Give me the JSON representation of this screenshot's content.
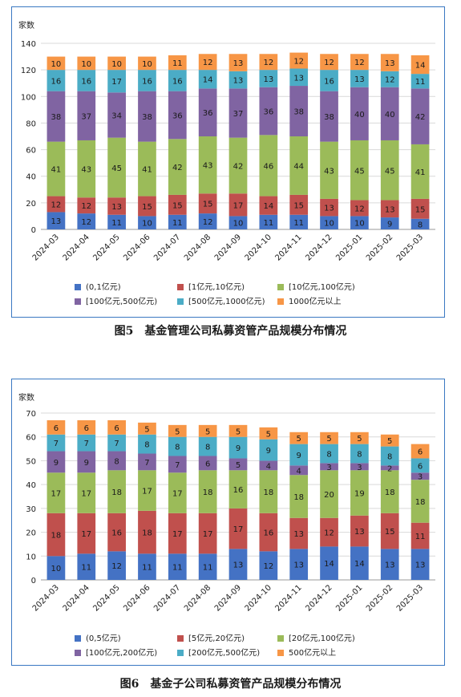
{
  "figures": [
    {
      "caption": "图5　基金管理公司私募资管产品规模分布情况"
    },
    {
      "caption": "图6　基金子公司私募资管产品规模分布情况"
    }
  ],
  "chart_data": [
    {
      "type": "bar",
      "stacked": true,
      "title": "",
      "ylabel": "家数",
      "xlabel": "",
      "ylim": [
        0,
        140
      ],
      "yticks": [
        0,
        20,
        40,
        60,
        80,
        100,
        120,
        140
      ],
      "grid": true,
      "legend_position": "bottom",
      "categories": [
        "2024-03",
        "2024-04",
        "2024-05",
        "2024-06",
        "2024-07",
        "2024-08",
        "2024-09",
        "2024-10",
        "2024-11",
        "2024-12",
        "2025-01",
        "2025-02",
        "2025-03"
      ],
      "series": [
        {
          "name": "(0,1亿元)",
          "color": "#4472c4",
          "values": [
            13,
            12,
            11,
            10,
            11,
            12,
            10,
            11,
            11,
            10,
            10,
            9,
            8
          ]
        },
        {
          "name": "[1亿元,10亿元)",
          "color": "#c0504d",
          "values": [
            12,
            12,
            13,
            15,
            15,
            15,
            17,
            14,
            15,
            13,
            12,
            13,
            15
          ]
        },
        {
          "name": "[10亿元,100亿元)",
          "color": "#9bbb59",
          "values": [
            41,
            43,
            45,
            41,
            42,
            43,
            42,
            46,
            44,
            43,
            45,
            45,
            41
          ]
        },
        {
          "name": "[100亿元,500亿元)",
          "color": "#8064a2",
          "values": [
            38,
            37,
            34,
            38,
            36,
            36,
            37,
            36,
            38,
            38,
            40,
            40,
            42
          ]
        },
        {
          "name": "[500亿元,1000亿元)",
          "color": "#4bacc6",
          "values": [
            16,
            16,
            17,
            16,
            16,
            14,
            13,
            13,
            13,
            16,
            13,
            12,
            11
          ]
        },
        {
          "name": "1000亿元以上",
          "color": "#f79646",
          "values": [
            10,
            10,
            10,
            10,
            11,
            12,
            13,
            12,
            12,
            12,
            12,
            13,
            14
          ]
        }
      ]
    },
    {
      "type": "bar",
      "stacked": true,
      "title": "",
      "ylabel": "家数",
      "xlabel": "",
      "ylim": [
        0,
        70
      ],
      "yticks": [
        0,
        10,
        20,
        30,
        40,
        50,
        60,
        70
      ],
      "grid": true,
      "legend_position": "bottom",
      "categories": [
        "2024-03",
        "2024-04",
        "2024-05",
        "2024-06",
        "2024-07",
        "2024-08",
        "2024-09",
        "2024-10",
        "2024-11",
        "2024-12",
        "2025-01",
        "2025-02",
        "2025-03"
      ],
      "series": [
        {
          "name": "(0,5亿元)",
          "color": "#4472c4",
          "values": [
            10,
            11,
            12,
            11,
            11,
            11,
            13,
            12,
            13,
            14,
            14,
            13,
            13
          ]
        },
        {
          "name": "[5亿元,20亿元)",
          "color": "#c0504d",
          "values": [
            18,
            17,
            16,
            18,
            17,
            17,
            17,
            16,
            13,
            12,
            13,
            15,
            11
          ]
        },
        {
          "name": "[20亿元,100亿元)",
          "color": "#9bbb59",
          "values": [
            17,
            17,
            18,
            17,
            17,
            18,
            16,
            18,
            18,
            20,
            19,
            18,
            18
          ]
        },
        {
          "name": "[100亿元,200亿元)",
          "color": "#8064a2",
          "values": [
            9,
            9,
            8,
            7,
            7,
            6,
            5,
            4,
            4,
            3,
            3,
            2,
            3
          ]
        },
        {
          "name": "[200亿元,500亿元)",
          "color": "#4bacc6",
          "values": [
            7,
            7,
            7,
            8,
            8,
            8,
            9,
            9,
            9,
            8,
            8,
            8,
            6
          ]
        },
        {
          "name": "500亿元以上",
          "color": "#f79646",
          "values": [
            6,
            6,
            6,
            5,
            5,
            5,
            5,
            5,
            5,
            5,
            5,
            5,
            6
          ]
        }
      ]
    }
  ]
}
